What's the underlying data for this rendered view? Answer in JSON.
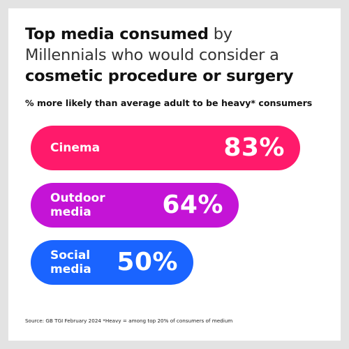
{
  "title": {
    "part1_bold": "Top media consumed",
    "part1_light": "by",
    "part2_light": "Millennials who would consider a",
    "part3_bold": "cosmetic procedure or surgery"
  },
  "subtitle": "% more likely than average adult to be heavy* consumers",
  "chart_data": {
    "type": "bar",
    "orientation": "horizontal",
    "title": "Top media consumed by Millennials who would consider a cosmetic procedure or surgery",
    "subtitle": "% more likely than average adult to be heavy* consumers",
    "categories": [
      "Cinema",
      "Outdoor media",
      "Social media"
    ],
    "display_labels": [
      "Cinema",
      "Outdoor\nmedia",
      "Social\nmedia"
    ],
    "values": [
      83,
      64,
      50
    ],
    "value_labels": [
      "83%",
      "64%",
      "50%"
    ],
    "colors": [
      "#ff1a6b",
      "#c414d6",
      "#1a64ff"
    ],
    "legend": "none",
    "grid": false
  },
  "source": "Source: GB TGI February 2024  *Heavy = among top 20% of consumers of medium"
}
